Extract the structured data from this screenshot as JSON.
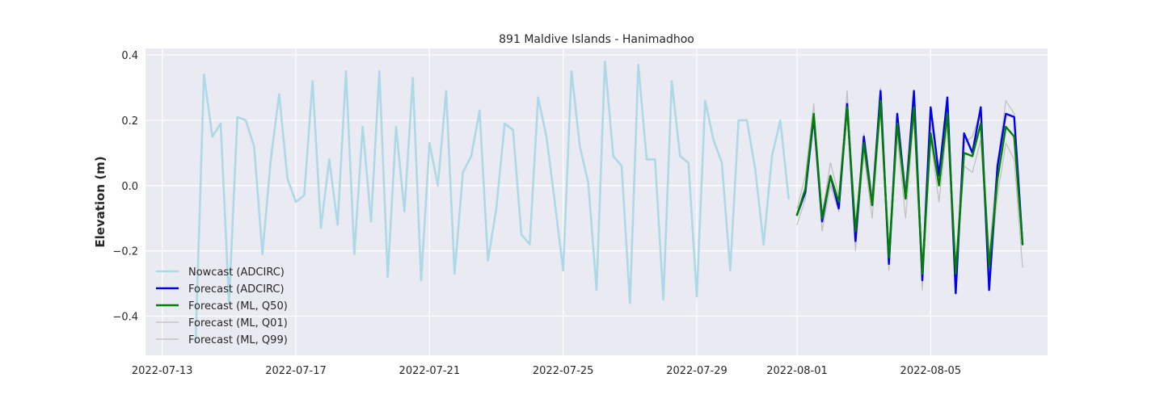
{
  "chart_data": {
    "type": "line",
    "title": "891 Maldive Islands - Hanimadhoo",
    "xlabel": "",
    "ylabel": "Elevation (m)",
    "x_axis_type": "date",
    "xlim": [
      "2022-07-12T12:00",
      "2022-08-08T12:00"
    ],
    "ylim": [
      -0.52,
      0.42
    ],
    "x_ticks": [
      "2022-07-13",
      "2022-07-17",
      "2022-07-21",
      "2022-07-25",
      "2022-07-29",
      "2022-08-01",
      "2022-08-05"
    ],
    "y_ticks": [
      -0.4,
      -0.2,
      0.0,
      0.2,
      0.4
    ],
    "y_tick_labels": [
      "−0.4",
      "−0.2",
      "0.0",
      "0.2",
      "0.4"
    ],
    "grid": true,
    "legend_position": "lower-left",
    "background": "#eaeaf2",
    "series": [
      {
        "name": "Nowcast (ADCIRC)",
        "color": "#add8e6",
        "x": [
          "2022-07-14T00:00",
          "2022-07-14T06:00",
          "2022-07-14T12:00",
          "2022-07-14T18:00",
          "2022-07-15T00:00",
          "2022-07-15T06:00",
          "2022-07-15T12:00",
          "2022-07-15T18:00",
          "2022-07-16T00:00",
          "2022-07-16T06:00",
          "2022-07-16T12:00",
          "2022-07-16T18:00",
          "2022-07-17T00:00",
          "2022-07-17T06:00",
          "2022-07-17T12:00",
          "2022-07-17T18:00",
          "2022-07-18T00:00",
          "2022-07-18T06:00",
          "2022-07-18T12:00",
          "2022-07-18T18:00",
          "2022-07-19T00:00",
          "2022-07-19T06:00",
          "2022-07-19T12:00",
          "2022-07-19T18:00",
          "2022-07-20T00:00",
          "2022-07-20T06:00",
          "2022-07-20T12:00",
          "2022-07-20T18:00",
          "2022-07-21T00:00",
          "2022-07-21T06:00",
          "2022-07-21T12:00",
          "2022-07-21T18:00",
          "2022-07-22T00:00",
          "2022-07-22T06:00",
          "2022-07-22T12:00",
          "2022-07-22T18:00",
          "2022-07-23T00:00",
          "2022-07-23T06:00",
          "2022-07-23T12:00",
          "2022-07-23T18:00",
          "2022-07-24T00:00",
          "2022-07-24T06:00",
          "2022-07-24T12:00",
          "2022-07-24T18:00",
          "2022-07-25T00:00",
          "2022-07-25T06:00",
          "2022-07-25T12:00",
          "2022-07-25T18:00",
          "2022-07-26T00:00",
          "2022-07-26T06:00",
          "2022-07-26T12:00",
          "2022-07-26T18:00",
          "2022-07-27T00:00",
          "2022-07-27T06:00",
          "2022-07-27T12:00",
          "2022-07-27T18:00",
          "2022-07-28T00:00",
          "2022-07-28T06:00",
          "2022-07-28T12:00",
          "2022-07-28T18:00",
          "2022-07-29T00:00",
          "2022-07-29T06:00",
          "2022-07-29T12:00",
          "2022-07-29T18:00",
          "2022-07-30T00:00",
          "2022-07-30T06:00",
          "2022-07-30T12:00",
          "2022-07-30T18:00",
          "2022-07-31T00:00",
          "2022-07-31T06:00",
          "2022-07-31T12:00",
          "2022-07-31T18:00"
        ],
        "y": [
          -0.48,
          0.34,
          0.15,
          0.19,
          -0.36,
          0.21,
          0.2,
          0.12,
          -0.21,
          0.08,
          0.28,
          0.02,
          -0.05,
          -0.03,
          0.32,
          -0.13,
          0.08,
          -0.12,
          0.35,
          -0.21,
          0.18,
          -0.11,
          0.35,
          -0.28,
          0.18,
          -0.08,
          0.33,
          -0.29,
          0.13,
          0.0,
          0.29,
          -0.27,
          0.04,
          0.09,
          0.23,
          -0.23,
          -0.07,
          0.19,
          0.17,
          -0.15,
          -0.18,
          0.27,
          0.15,
          -0.05,
          -0.26,
          0.35,
          0.12,
          0.01,
          -0.32,
          0.38,
          0.09,
          0.06,
          -0.36,
          0.37,
          0.08,
          0.08,
          -0.35,
          0.32,
          0.09,
          0.07,
          -0.34,
          0.26,
          0.14,
          0.07,
          -0.26,
          0.2,
          0.2,
          0.05,
          -0.18,
          0.09,
          0.2,
          -0.04
        ]
      },
      {
        "name": "Forecast (ADCIRC)",
        "color": "#0000ee",
        "x": [
          "2022-08-01T00:00",
          "2022-08-01T06:00",
          "2022-08-01T12:00",
          "2022-08-01T18:00",
          "2022-08-02T00:00",
          "2022-08-02T06:00",
          "2022-08-02T12:00",
          "2022-08-02T18:00",
          "2022-08-03T00:00",
          "2022-08-03T06:00",
          "2022-08-03T12:00",
          "2022-08-03T18:00",
          "2022-08-04T00:00",
          "2022-08-04T06:00",
          "2022-08-04T12:00",
          "2022-08-04T18:00",
          "2022-08-05T00:00",
          "2022-08-05T06:00",
          "2022-08-05T12:00",
          "2022-08-05T18:00",
          "2022-08-06T00:00",
          "2022-08-06T06:00",
          "2022-08-06T12:00",
          "2022-08-06T18:00",
          "2022-08-07T00:00",
          "2022-08-07T06:00",
          "2022-08-07T12:00",
          "2022-08-07T18:00"
        ],
        "y": [
          -0.09,
          -0.02,
          0.21,
          -0.11,
          0.03,
          -0.07,
          0.25,
          -0.17,
          0.15,
          -0.06,
          0.29,
          -0.24,
          0.22,
          -0.04,
          0.29,
          -0.29,
          0.24,
          0.03,
          0.27,
          -0.33,
          0.16,
          0.1,
          0.24,
          -0.32,
          0.06,
          0.22,
          0.21,
          -0.18
        ]
      },
      {
        "name": "Forecast (ML, Q50)",
        "color": "#008000",
        "x": [
          "2022-08-01T00:00",
          "2022-08-01T06:00",
          "2022-08-01T12:00",
          "2022-08-01T18:00",
          "2022-08-02T00:00",
          "2022-08-02T06:00",
          "2022-08-02T12:00",
          "2022-08-02T18:00",
          "2022-08-03T00:00",
          "2022-08-03T06:00",
          "2022-08-03T12:00",
          "2022-08-03T18:00",
          "2022-08-04T00:00",
          "2022-08-04T06:00",
          "2022-08-04T12:00",
          "2022-08-04T18:00",
          "2022-08-05T00:00",
          "2022-08-05T06:00",
          "2022-08-05T12:00",
          "2022-08-05T18:00",
          "2022-08-06T00:00",
          "2022-08-06T06:00",
          "2022-08-06T12:00",
          "2022-08-06T18:00",
          "2022-08-07T00:00",
          "2022-08-07T06:00",
          "2022-08-07T12:00",
          "2022-08-07T18:00"
        ],
        "y": [
          -0.09,
          -0.01,
          0.22,
          -0.1,
          0.03,
          -0.05,
          0.24,
          -0.14,
          0.13,
          -0.06,
          0.26,
          -0.22,
          0.19,
          -0.04,
          0.24,
          -0.27,
          0.16,
          0.0,
          0.22,
          -0.27,
          0.1,
          0.09,
          0.19,
          -0.25,
          0.02,
          0.18,
          0.15,
          -0.18
        ]
      },
      {
        "name": "Forecast (ML, Q01)",
        "color": "#bebebe",
        "x": [
          "2022-08-01T00:00",
          "2022-08-01T06:00",
          "2022-08-01T12:00",
          "2022-08-01T18:00",
          "2022-08-02T00:00",
          "2022-08-02T06:00",
          "2022-08-02T12:00",
          "2022-08-02T18:00",
          "2022-08-03T00:00",
          "2022-08-03T06:00",
          "2022-08-03T12:00",
          "2022-08-03T18:00",
          "2022-08-04T00:00",
          "2022-08-04T06:00",
          "2022-08-04T12:00",
          "2022-08-04T18:00",
          "2022-08-05T00:00",
          "2022-08-05T06:00",
          "2022-08-05T12:00",
          "2022-08-05T18:00",
          "2022-08-06T00:00",
          "2022-08-06T06:00",
          "2022-08-06T12:00",
          "2022-08-06T18:00",
          "2022-08-07T00:00",
          "2022-08-07T06:00",
          "2022-08-07T12:00",
          "2022-08-07T18:00"
        ],
        "y": [
          -0.12,
          -0.04,
          0.2,
          -0.14,
          0.0,
          -0.08,
          0.22,
          -0.2,
          0.1,
          -0.1,
          0.23,
          -0.26,
          0.15,
          -0.1,
          0.21,
          -0.32,
          0.14,
          -0.05,
          0.19,
          -0.3,
          0.06,
          0.04,
          0.14,
          -0.28,
          -0.03,
          0.13,
          0.08,
          -0.25
        ]
      },
      {
        "name": "Forecast (ML, Q99)",
        "color": "#bebebe",
        "x": [
          "2022-08-01T00:00",
          "2022-08-01T06:00",
          "2022-08-01T12:00",
          "2022-08-01T18:00",
          "2022-08-02T00:00",
          "2022-08-02T06:00",
          "2022-08-02T12:00",
          "2022-08-02T18:00",
          "2022-08-03T00:00",
          "2022-08-03T06:00",
          "2022-08-03T12:00",
          "2022-08-03T18:00",
          "2022-08-04T00:00",
          "2022-08-04T06:00",
          "2022-08-04T12:00",
          "2022-08-04T18:00",
          "2022-08-05T00:00",
          "2022-08-05T06:00",
          "2022-08-05T12:00",
          "2022-08-05T18:00",
          "2022-08-06T00:00",
          "2022-08-06T06:00",
          "2022-08-06T12:00",
          "2022-08-06T18:00",
          "2022-08-07T00:00",
          "2022-08-07T06:00",
          "2022-08-07T12:00",
          "2022-08-07T18:00"
        ],
        "y": [
          -0.07,
          0.03,
          0.25,
          -0.09,
          0.07,
          -0.03,
          0.29,
          -0.13,
          0.16,
          -0.03,
          0.3,
          -0.2,
          0.21,
          0.0,
          0.27,
          -0.24,
          0.19,
          0.05,
          0.27,
          -0.24,
          0.13,
          0.15,
          0.23,
          -0.21,
          0.07,
          0.26,
          0.22,
          -0.16
        ]
      }
    ]
  }
}
